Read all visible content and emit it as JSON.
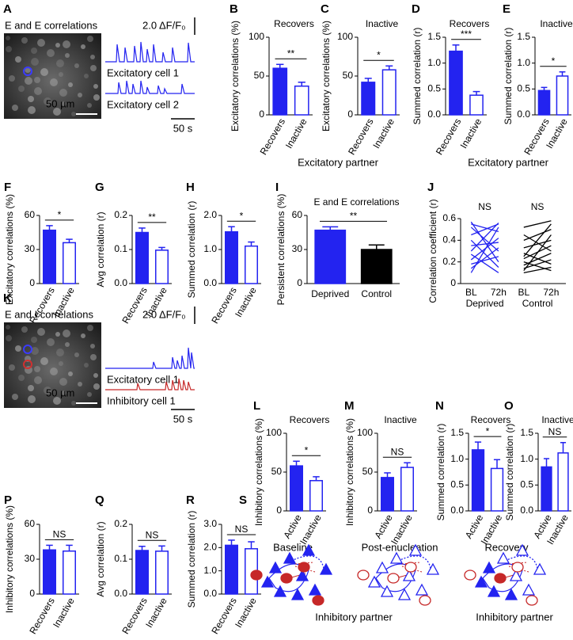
{
  "chart_data": [
    {
      "type": "bar",
      "panel": "B",
      "title": "Recovers",
      "ylabel": "Excitatory correlations (%)",
      "categories": [
        "Recovers",
        "Inactive"
      ],
      "values": [
        60,
        37
      ],
      "errors": [
        5,
        5
      ],
      "color": "#2323f0",
      "styles": [
        "filled",
        "open"
      ],
      "ylim": [
        0,
        100
      ],
      "yticks": [
        0,
        50,
        100
      ],
      "significance": "**"
    },
    {
      "type": "bar",
      "panel": "C",
      "title": "Inactive",
      "ylabel": "Excitatory correlations (%)",
      "categories": [
        "Recovers",
        "Inactive"
      ],
      "values": [
        42,
        58
      ],
      "errors": [
        5,
        5
      ],
      "color": "#2323f0",
      "styles": [
        "filled",
        "open"
      ],
      "ylim": [
        0,
        100
      ],
      "yticks": [
        0,
        50,
        100
      ],
      "significance": "*"
    },
    {
      "type": "bar",
      "panel": "D",
      "title": "Recovers",
      "ylabel": "Summed correlation (r)",
      "categories": [
        "Recovers",
        "Inactive"
      ],
      "values": [
        1.23,
        0.38
      ],
      "errors": [
        0.12,
        0.07
      ],
      "color": "#2323f0",
      "styles": [
        "filled",
        "open"
      ],
      "ylim": [
        0,
        1.5
      ],
      "yticks": [
        {
          "value": 0,
          "label": "0.0"
        },
        0.5,
        {
          "value": 1,
          "label": "1.0"
        },
        1.5
      ],
      "significance": "***"
    },
    {
      "type": "bar",
      "panel": "E",
      "title": "Inactive",
      "ylabel": "Summed correlation (r)",
      "categories": [
        "Recovers",
        "Inactive"
      ],
      "values": [
        0.47,
        0.75
      ],
      "errors": [
        0.06,
        0.08
      ],
      "color": "#2323f0",
      "styles": [
        "filled",
        "open"
      ],
      "ylim": [
        0,
        1.5
      ],
      "yticks": [
        {
          "value": 0,
          "label": "0.0"
        },
        0.5,
        {
          "value": 1,
          "label": "1.0"
        },
        1.5
      ],
      "significance": "*"
    },
    {
      "type": "bar",
      "panel": "F",
      "ylabel": "Excitatory correlations (%)",
      "categories": [
        "Recovers",
        "Inactive"
      ],
      "values": [
        47,
        36
      ],
      "errors": [
        4,
        3
      ],
      "color": "#2323f0",
      "styles": [
        "filled",
        "open"
      ],
      "ylim": [
        0,
        60
      ],
      "yticks": [
        0,
        30,
        60
      ],
      "significance": "*"
    },
    {
      "type": "bar",
      "panel": "G",
      "ylabel": "Avg correlation (r)",
      "categories": [
        "Recovers",
        "Inactive"
      ],
      "values": [
        0.15,
        0.098
      ],
      "errors": [
        0.013,
        0.008
      ],
      "color": "#2323f0",
      "styles": [
        "filled",
        "open"
      ],
      "ylim": [
        0,
        0.2
      ],
      "yticks": [
        {
          "value": 0,
          "label": "0.0"
        },
        0.1,
        0.2
      ],
      "significance": "**"
    },
    {
      "type": "bar",
      "panel": "H",
      "ylabel": "Summed correlation (r)",
      "categories": [
        "Recovers",
        "Inactive"
      ],
      "values": [
        1.52,
        1.1
      ],
      "errors": [
        0.15,
        0.12
      ],
      "color": "#2323f0",
      "styles": [
        "filled",
        "open"
      ],
      "ylim": [
        0,
        2
      ],
      "yticks": [
        {
          "value": 0,
          "label": "0.0"
        },
        {
          "value": 1,
          "label": "1.0"
        },
        {
          "value": 2,
          "label": "2.0"
        }
      ],
      "significance": "*"
    },
    {
      "type": "bar",
      "panel": "I",
      "title": "E and E correlations",
      "ylabel": "Persistent correlations (%)",
      "categories": [
        "Deprived",
        "Control"
      ],
      "values": [
        47,
        30
      ],
      "errors": [
        3,
        4
      ],
      "colors": [
        "#2323f0",
        "#000000"
      ],
      "styles": [
        "filled",
        "filled"
      ],
      "ylim": [
        0,
        60
      ],
      "yticks": [
        0,
        30,
        60
      ],
      "significance": "**"
    },
    {
      "type": "paired",
      "panel": "J",
      "ylabel": "Correlation coefficient (r)",
      "categories": [
        "BL",
        "72h"
      ],
      "ylim": [
        0,
        0.6
      ],
      "yticks": [
        0,
        0.2,
        0.4,
        0.6
      ],
      "groups": [
        {
          "name": "Deprived",
          "color": "#2323f0",
          "significance": "NS",
          "before": [
            0.57,
            0.55,
            0.52,
            0.45,
            0.4,
            0.35,
            0.3,
            0.27,
            0.22,
            0.18,
            0.14,
            0.1
          ],
          "after": [
            0.2,
            0.48,
            0.3,
            0.55,
            0.15,
            0.38,
            0.56,
            0.1,
            0.42,
            0.25,
            0.33,
            0.52
          ]
        },
        {
          "name": "Control",
          "color": "#000000",
          "significance": "NS",
          "before": [
            0.52,
            0.45,
            0.4,
            0.33,
            0.28,
            0.23,
            0.2,
            0.17,
            0.14,
            0.12,
            0.1,
            0.25
          ],
          "after": [
            0.58,
            0.3,
            0.5,
            0.4,
            0.18,
            0.35,
            0.12,
            0.28,
            0.22,
            0.45,
            0.15,
            0.55
          ]
        }
      ]
    },
    {
      "type": "bar",
      "panel": "L",
      "title": "Recovers",
      "ylabel": "Inhibitory correlations (%)",
      "categories": [
        "Active",
        "Inactive"
      ],
      "values": [
        58,
        39
      ],
      "errors": [
        6,
        5
      ],
      "color": "#2323f0",
      "styles": [
        "filled",
        "open"
      ],
      "ylim": [
        0,
        100
      ],
      "yticks": [
        0,
        50,
        100
      ],
      "significance": "*"
    },
    {
      "type": "bar",
      "panel": "M",
      "title": "Inactive",
      "ylabel": "Inhibitory correlations (%)",
      "categories": [
        "Active",
        "Inactive"
      ],
      "values": [
        43,
        56
      ],
      "errors": [
        6,
        6
      ],
      "color": "#2323f0",
      "styles": [
        "filled",
        "open"
      ],
      "ylim": [
        0,
        100
      ],
      "yticks": [
        0,
        50,
        100
      ],
      "significance": "NS"
    },
    {
      "type": "bar",
      "panel": "N",
      "title": "Recovers",
      "ylabel": "Summed correlation (r)",
      "categories": [
        "Active",
        "Inactive"
      ],
      "values": [
        1.18,
        0.82
      ],
      "errors": [
        0.15,
        0.17
      ],
      "color": "#2323f0",
      "styles": [
        "filled",
        "open"
      ],
      "ylim": [
        0,
        1.5
      ],
      "yticks": [
        {
          "value": 0,
          "label": "0.0"
        },
        0.5,
        {
          "value": 1,
          "label": "1.0"
        },
        1.5
      ],
      "significance": "*"
    },
    {
      "type": "bar",
      "panel": "O",
      "title": "Inactive",
      "ylabel": "Summed correlation (r)",
      "categories": [
        "Active",
        "Inactive"
      ],
      "values": [
        0.85,
        1.12
      ],
      "errors": [
        0.16,
        0.2
      ],
      "color": "#2323f0",
      "styles": [
        "filled",
        "open"
      ],
      "ylim": [
        0,
        1.5
      ],
      "yticks": [
        {
          "value": 0,
          "label": "0.0"
        },
        0.5,
        {
          "value": 1,
          "label": "1.0"
        },
        1.5
      ],
      "significance": "NS"
    },
    {
      "type": "bar",
      "panel": "P",
      "ylabel": "Inhibitory correlations (%)",
      "categories": [
        "Recovers",
        "Inactive"
      ],
      "values": [
        38,
        37
      ],
      "errors": [
        4,
        5
      ],
      "color": "#2323f0",
      "styles": [
        "filled",
        "open"
      ],
      "ylim": [
        0,
        60
      ],
      "yticks": [
        0,
        30,
        60
      ],
      "significance": "NS"
    },
    {
      "type": "bar",
      "panel": "Q",
      "ylabel": "Avg correlation (r)",
      "categories": [
        "Recovers",
        "Inactive"
      ],
      "values": [
        0.125,
        0.123
      ],
      "errors": [
        0.012,
        0.015
      ],
      "color": "#2323f0",
      "styles": [
        "filled",
        "open"
      ],
      "ylim": [
        0,
        0.2
      ],
      "yticks": [
        {
          "value": 0,
          "label": "0.0"
        },
        0.1,
        0.2
      ],
      "significance": "NS"
    },
    {
      "type": "bar",
      "panel": "R",
      "ylabel": "Summed correlation (r)",
      "categories": [
        "Recovers",
        "Inactive"
      ],
      "values": [
        2.1,
        1.95
      ],
      "errors": [
        0.22,
        0.3
      ],
      "color": "#2323f0",
      "styles": [
        "filled",
        "open"
      ],
      "ylim": [
        0,
        3
      ],
      "yticks": [
        {
          "value": 0,
          "label": "0.0"
        },
        {
          "value": 1,
          "label": "1.0"
        },
        {
          "value": 2,
          "label": "2.0"
        },
        {
          "value": 3,
          "label": "3.0"
        }
      ],
      "significance": "NS"
    }
  ],
  "group_labels": [
    {
      "text": "Excitatory partner",
      "color": "#2323f0"
    },
    {
      "text": "Excitatory partner",
      "color": "#2323f0"
    },
    {
      "text": "Inhibitory partner",
      "color": "#c62828"
    },
    {
      "text": "Inhibitory partner",
      "color": "#c62828"
    }
  ],
  "image_panels": [
    {
      "panel": "A",
      "title": "E and E correlations",
      "amplitude_scale": "2.0 ΔF/F₀",
      "image_scale": "50 µm",
      "time_scale": "50 s",
      "traces": [
        {
          "label": "Excitatory cell 1",
          "color": "#2323f0"
        },
        {
          "label": "Excitatory cell 2",
          "color": "#2323f0"
        }
      ]
    },
    {
      "panel": "K",
      "title": "E and I correlations",
      "amplitude_scale": "2.0 ΔF/F₀",
      "image_scale": "50 µm",
      "time_scale": "50 s",
      "traces": [
        {
          "label": "Excitatory cell 1",
          "color": "#2323f0"
        },
        {
          "label": "Inhibitory cell 1",
          "color": "#c62828"
        }
      ]
    }
  ],
  "diagram": {
    "panel": "S",
    "stages": [
      "Baseline",
      "Post-enucleation",
      "Recovery"
    ]
  }
}
